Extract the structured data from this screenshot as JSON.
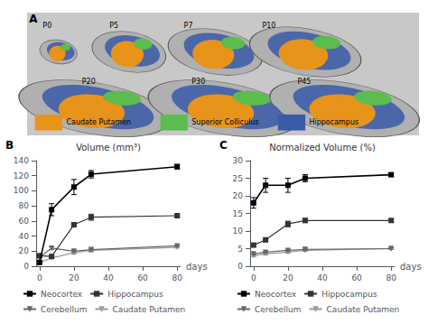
{
  "chart_data": [
    {
      "type": "image",
      "annotations": [
        "A",
        "P0",
        "P5",
        "P7",
        "P10",
        "P20",
        "P30",
        "P45"
      ],
      "categories": [
        "Caudate Putamen",
        "Superior Colliculus",
        "Hippocampus"
      ],
      "colors": [
        "#E8941A",
        "#5BBD4E",
        "#3A5BA8"
      ]
    },
    {
      "type": "line",
      "title": "Volume (mm³)",
      "annotations": [
        "B"
      ],
      "xlabel": "days",
      "x": [
        0,
        7,
        20,
        30,
        80
      ],
      "xlim": [
        -2,
        82
      ],
      "xticks": [
        0,
        20,
        40,
        60,
        80
      ],
      "ylim": [
        0,
        140
      ],
      "yticks": [
        0,
        20,
        40,
        60,
        80,
        100,
        120,
        140
      ],
      "grid": false,
      "legend": "bottom",
      "series": [
        {
          "name": "Neocortex",
          "color": "#000000",
          "marker": "square",
          "line_style": "solid",
          "values": [
            5,
            75,
            105,
            122,
            132
          ],
          "errors": [
            1.0,
            8,
            10,
            5,
            3
          ]
        },
        {
          "name": "Hippocampus",
          "color": "#333333",
          "marker": "square",
          "line_style": "solid",
          "values": [
            14,
            13,
            55,
            65,
            67
          ],
          "errors": [
            1.0,
            1.5,
            3,
            4,
            2
          ]
        },
        {
          "name": "Cerebellum",
          "color": "#666666",
          "marker": "triangle_down",
          "line_style": "solid",
          "values": [
            12,
            24,
            20,
            22,
            27
          ],
          "errors": [
            1.0,
            2,
            2,
            2,
            1
          ]
        },
        {
          "name": "Caudate Putamen",
          "color": "#999999",
          "marker": "triangle_down",
          "line_style": "solid",
          "values": [
            5,
            11,
            18,
            21,
            25
          ],
          "errors": [
            0.5,
            1,
            2,
            2,
            1
          ]
        }
      ]
    },
    {
      "type": "line",
      "title": "Normalized Volume (%)",
      "annotations": [
        "C"
      ],
      "xlabel": "days",
      "x": [
        0,
        7,
        20,
        30,
        80
      ],
      "xlim": [
        -2,
        82
      ],
      "xticks": [
        0,
        20,
        40,
        60,
        80
      ],
      "ylim": [
        0,
        30
      ],
      "yticks": [
        0,
        5,
        10,
        15,
        20,
        25,
        30
      ],
      "grid": false,
      "legend": "bottom",
      "series": [
        {
          "name": "Neocortex",
          "color": "#000000",
          "marker": "square",
          "line_style": "solid",
          "values": [
            18,
            23,
            23,
            25,
            26
          ],
          "errors": [
            1.5,
            2,
            2,
            1,
            0.5
          ]
        },
        {
          "name": "Hippocampus",
          "color": "#333333",
          "marker": "square",
          "line_style": "solid",
          "values": [
            6,
            7.5,
            12,
            13,
            13
          ],
          "errors": [
            0.4,
            0.5,
            0.8,
            0.6,
            0.4
          ]
        },
        {
          "name": "Cerebellum",
          "color": "#666666",
          "marker": "triangle_down",
          "line_style": "solid",
          "values": [
            3.5,
            4,
            4.5,
            4.8,
            5
          ],
          "errors": [
            0.3,
            0.3,
            0.3,
            0.3,
            0.2
          ]
        },
        {
          "name": "Caudate Putamen",
          "color": "#999999",
          "marker": "triangle_down",
          "line_style": "solid",
          "values": [
            3,
            3.5,
            4,
            4.5,
            5
          ],
          "errors": [
            0.3,
            0.3,
            0.3,
            0.3,
            0.2
          ]
        }
      ]
    }
  ]
}
